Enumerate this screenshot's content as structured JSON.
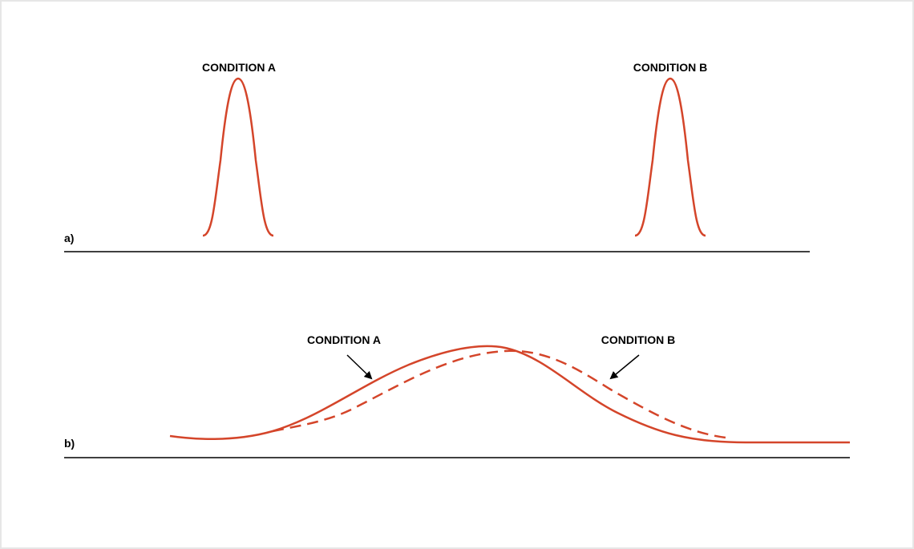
{
  "panels": [
    {
      "label": "a)",
      "curves": [
        {
          "label": "CONDITION A"
        },
        {
          "label": "CONDITION B"
        }
      ]
    },
    {
      "label": "b)",
      "curves": [
        {
          "label": "CONDITION A"
        },
        {
          "label": "CONDITION B"
        }
      ]
    }
  ]
}
